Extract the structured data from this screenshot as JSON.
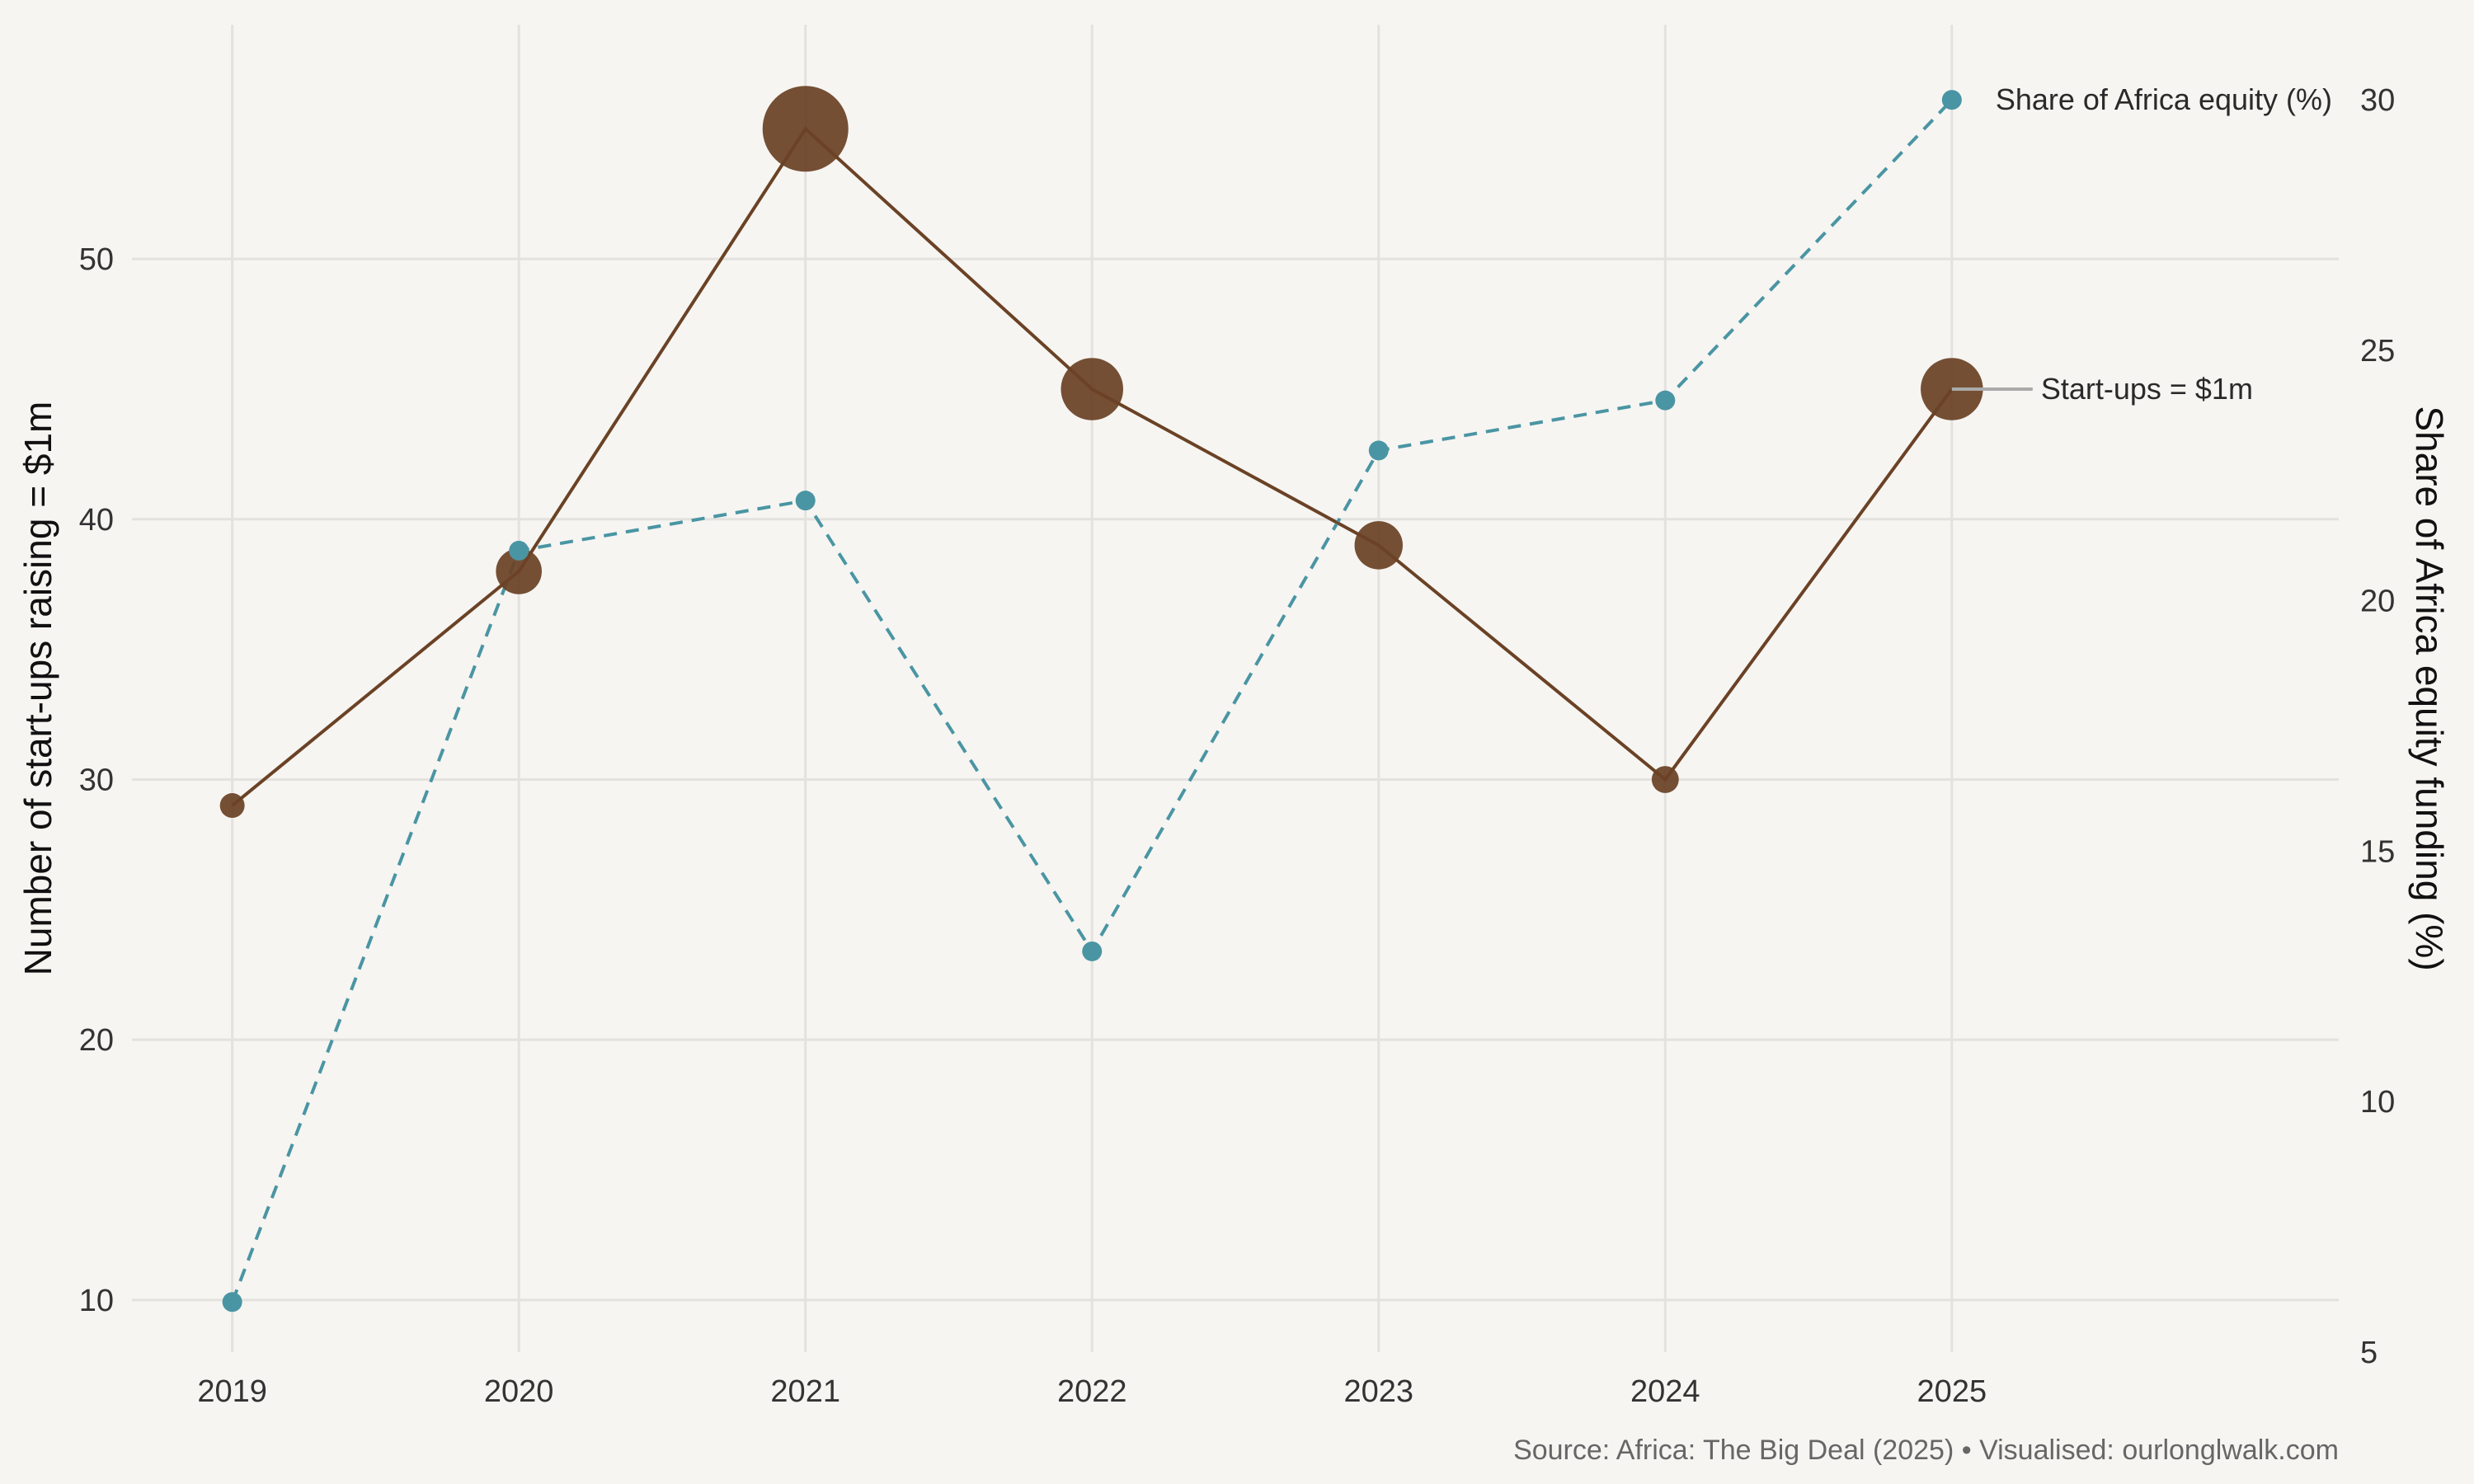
{
  "chart_data": {
    "type": "line",
    "x": [
      2019,
      2020,
      2021,
      2022,
      2023,
      2024,
      2025
    ],
    "xlim": [
      2018.65,
      2026.35
    ],
    "series": [
      {
        "name": "Start-ups = $1m",
        "axis": "left",
        "values": [
          29,
          38,
          55,
          45,
          39,
          30,
          45
        ],
        "color": "#6b4226",
        "line_style": "solid",
        "marker_size_by_value": true
      },
      {
        "name": "Share of Africa equity (%)",
        "axis": "right",
        "values": [
          6,
          21,
          22,
          13,
          23,
          24,
          30
        ],
        "color": "#4a95a3",
        "line_style": "dashed"
      }
    ],
    "y_left": {
      "label": "Number of start-ups raising = $1m",
      "ticks": [
        10,
        20,
        30,
        40,
        50
      ],
      "lim": [
        8.0,
        59.0
      ]
    },
    "y_right": {
      "label": "Share of Africa equity funding (%)",
      "ticks": [
        5,
        10,
        15,
        20,
        25,
        30
      ],
      "lim": [
        5,
        31.5
      ]
    },
    "grid": true,
    "legend": "direct labels at right end of each series",
    "caption": "Source: Africa: The Big Deal (2025) • Visualised: ourlonglwalk.com"
  }
}
